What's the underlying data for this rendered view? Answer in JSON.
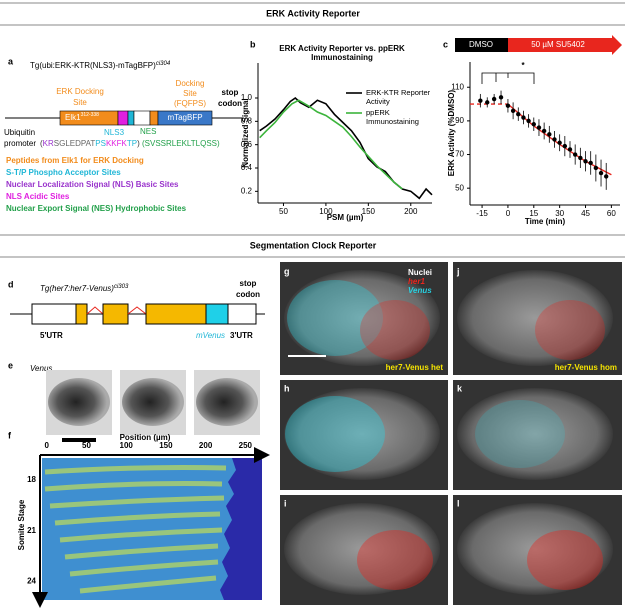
{
  "sections": [
    "ERK Activity Reporter",
    "Segmentation Clock Reporter"
  ],
  "panel_labels": [
    "a",
    "b",
    "c",
    "d",
    "e",
    "f",
    "g",
    "h",
    "i",
    "j",
    "k",
    "l"
  ],
  "panel_a": {
    "transgene": "Tg(ubi:ERK-KTR(NLS3)-mTagBFP)",
    "allele": "ci304",
    "docking_site": [
      "Docking",
      "Site"
    ],
    "docking_motif": "(FQFPS)",
    "erk_docking_site": [
      "ERK Docking",
      "Site"
    ],
    "stop_codon": [
      "stop",
      "codon"
    ],
    "elk1": "Elk1",
    "elk1_range": "312-338",
    "mtagbfp": "mTagBFP",
    "nls3": "NLS3",
    "nes": "NES",
    "promoter": [
      "Ubiquitin",
      "promoter"
    ],
    "sequence": [
      {
        "text": "(",
        "color": "#333333"
      },
      {
        "text": "KR",
        "color": "#9933cc"
      },
      {
        "text": "SGLEDPAT",
        "color": "#666666"
      },
      {
        "text": "PS",
        "color": "#1fb6d6"
      },
      {
        "text": "KKFK",
        "color": "#e020e0"
      },
      {
        "text": "TP",
        "color": "#1fb6d6"
      },
      {
        "text": ")",
        "color": "#333333"
      },
      {
        "text": " (SVSSRLEKLTLQSS)",
        "color": "#22a04a"
      }
    ],
    "legend": [
      {
        "text": "Peptides from Elk1 for ERK Docking",
        "color": "#f28c1c"
      },
      {
        "text": "S-T/P Phospho Acceptor Sites",
        "color": "#1fb6d6"
      },
      {
        "text": "Nuclear Localization Signal (NLS) Basic Sites",
        "color": "#9933cc"
      },
      {
        "text": "NLS Acidic Sites",
        "color": "#e020e0"
      },
      {
        "text": "Nuclear Export Signal (NES) Hydrophobic Sites",
        "color": "#22a04a"
      }
    ]
  },
  "chart_data": [
    {
      "type": "line",
      "title": "ERK Activity Reporter vs. ppERK Immunostaining",
      "xlabel": "PSM (µm)",
      "ylabel": "Normalized Signal",
      "xlim": [
        20,
        225
      ],
      "xticks": [
        50,
        100,
        150,
        200
      ],
      "ylim": [
        0.1,
        1.3
      ],
      "yticks": [
        0.2,
        0.4,
        0.6,
        0.8,
        {
          "value": 1,
          "label": "1.0"
        }
      ],
      "series": [
        {
          "name": "ERK-KTR Reporter Activity",
          "color": "#000000",
          "x": [
            22,
            30,
            40,
            50,
            58,
            64,
            70,
            80,
            90,
            100,
            110,
            120,
            130,
            140,
            150,
            160,
            170,
            180,
            190,
            200,
            210,
            218,
            225
          ],
          "values": [
            0.72,
            0.76,
            0.82,
            0.9,
            0.97,
            1.0,
            0.96,
            0.92,
            0.98,
            0.95,
            0.86,
            0.79,
            0.72,
            0.62,
            0.48,
            0.41,
            0.37,
            0.28,
            0.22,
            0.2,
            0.14,
            0.22,
            0.17
          ]
        },
        {
          "name": "ppERK Immunostaining",
          "color": "#3cb43c",
          "x": [
            22,
            30,
            40,
            50,
            60,
            68,
            80,
            90,
            100,
            110,
            120,
            130,
            140,
            150,
            160,
            170,
            180,
            190
          ],
          "values": [
            0.66,
            0.72,
            0.79,
            0.88,
            0.95,
            0.98,
            0.93,
            0.88,
            0.85,
            0.8,
            0.75,
            0.67,
            0.58,
            0.5,
            0.42,
            0.35,
            0.28,
            0.22
          ]
        }
      ],
      "legend": "upper right"
    },
    {
      "type": "scatter",
      "xlabel": "Time (min)",
      "ylabel": "ERK Activity (%DMSO)",
      "xlim": [
        -22,
        65
      ],
      "xticks": [
        -15,
        0,
        15,
        30,
        45,
        60
      ],
      "ylim": [
        40,
        125
      ],
      "yticks": [
        50,
        70,
        90,
        110
      ],
      "x": [
        -16,
        -12,
        -8,
        -4,
        0,
        3,
        6,
        9,
        12,
        15,
        18,
        21,
        24,
        27,
        30,
        33,
        36,
        39,
        42,
        45,
        48,
        51,
        54,
        57
      ],
      "values": [
        102,
        101,
        103,
        104,
        99,
        96,
        94,
        92,
        90,
        88,
        86,
        84,
        82,
        79,
        77,
        75,
        73,
        70,
        68,
        66,
        65,
        62,
        59,
        57
      ],
      "errors": [
        4,
        3,
        3,
        4,
        4,
        5,
        4,
        4,
        4,
        4,
        5,
        5,
        5,
        5,
        5,
        6,
        5,
        6,
        6,
        6,
        7,
        8,
        8,
        8
      ],
      "color": "#000000",
      "reference_line": {
        "x": [
          -22,
          0
        ],
        "values": [
          100,
          100
        ],
        "color": "#e8261e"
      },
      "fit": {
        "x": [
          0,
          15,
          30,
          45,
          60
        ],
        "values": [
          100,
          87,
          76,
          66,
          58
        ],
        "color": "#e8261e"
      },
      "treatments": [
        "DMSO",
        "50 µM SU5402"
      ],
      "significance": "*"
    },
    {
      "type": "heatmap",
      "xlabel": "Position (µm)",
      "ylabel": "Somite Stage",
      "xlim": [
        -6,
        271
      ],
      "xticks": [
        0,
        50,
        100,
        150,
        200,
        250
      ],
      "ylim": [
        16.7,
        25.1
      ],
      "yticks": [
        18,
        21,
        24
      ],
      "y_reversed": true
    }
  ],
  "panel_d": {
    "transgene": "Tg(her7:her7-Venus)",
    "allele": "ci303",
    "stop_codon": [
      "stop",
      "codon"
    ],
    "utr5": "5'UTR",
    "mvenus": "mVenus",
    "utr3": "3'UTR"
  },
  "panel_e": {
    "label": "Venus"
  },
  "images": {
    "channels": [
      "Nuclei",
      "her1",
      "Venus"
    ],
    "genotypes": [
      "her7-Venus het",
      "her7-Venus hom"
    ]
  }
}
